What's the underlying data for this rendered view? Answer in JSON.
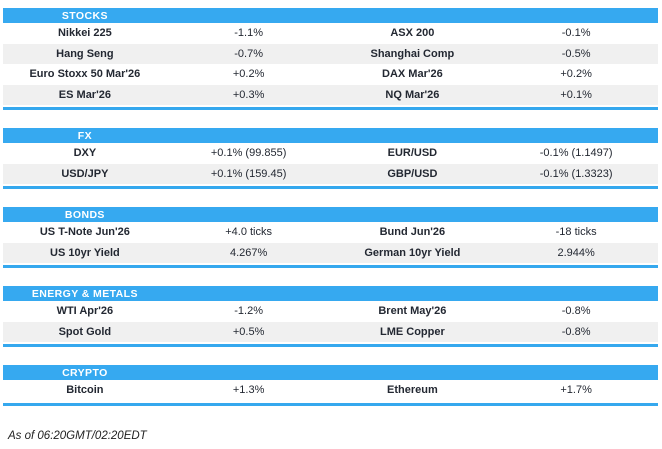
{
  "accent": {
    "header_bg": "#36a9f0",
    "section_border": "#35a8ee",
    "row_alt_bg": "#f0f0f0",
    "text_color": "#232832"
  },
  "sections": [
    {
      "title": "STOCKS",
      "rows": [
        {
          "cells": [
            "Nikkei 225",
            "-1.1%",
            "ASX 200",
            "-0.1%"
          ]
        },
        {
          "cells": [
            "Hang Seng",
            "-0.7%",
            "Shanghai Comp",
            "-0.5%"
          ]
        },
        {
          "cells": [
            "Euro Stoxx 50 Mar'26",
            "+0.2%",
            "DAX Mar'26",
            "+0.2%"
          ]
        },
        {
          "cells": [
            "ES Mar'26",
            "+0.3%",
            "NQ Mar'26",
            "+0.1%"
          ]
        }
      ]
    },
    {
      "title": "FX",
      "rows": [
        {
          "cells": [
            "DXY",
            "+0.1% (99.855)",
            "EUR/USD",
            "-0.1% (1.1497)"
          ]
        },
        {
          "cells": [
            "USD/JPY",
            "+0.1% (159.45)",
            "GBP/USD",
            "-0.1% (1.3323)"
          ]
        }
      ]
    },
    {
      "title": "BONDS",
      "rows": [
        {
          "cells": [
            "US T-Note Jun'26",
            "+4.0 ticks",
            "Bund Jun'26",
            "-18 ticks"
          ]
        },
        {
          "cells": [
            "US 10yr Yield",
            "4.267%",
            "German 10yr Yield",
            "2.944%"
          ]
        }
      ]
    },
    {
      "title": "ENERGY & METALS",
      "rows": [
        {
          "cells": [
            "WTI Apr'26",
            "-1.2%",
            "Brent May'26",
            "-0.8%"
          ]
        },
        {
          "cells": [
            "Spot Gold",
            "+0.5%",
            "LME Copper",
            "-0.8%"
          ]
        }
      ]
    },
    {
      "title": "CRYPTO",
      "rows": [
        {
          "cells": [
            "Bitcoin",
            "+1.3%",
            "Ethereum",
            "+1.7%"
          ]
        }
      ]
    }
  ],
  "footer": {
    "as_of": "As of 06:20GMT/02:20EDT"
  }
}
